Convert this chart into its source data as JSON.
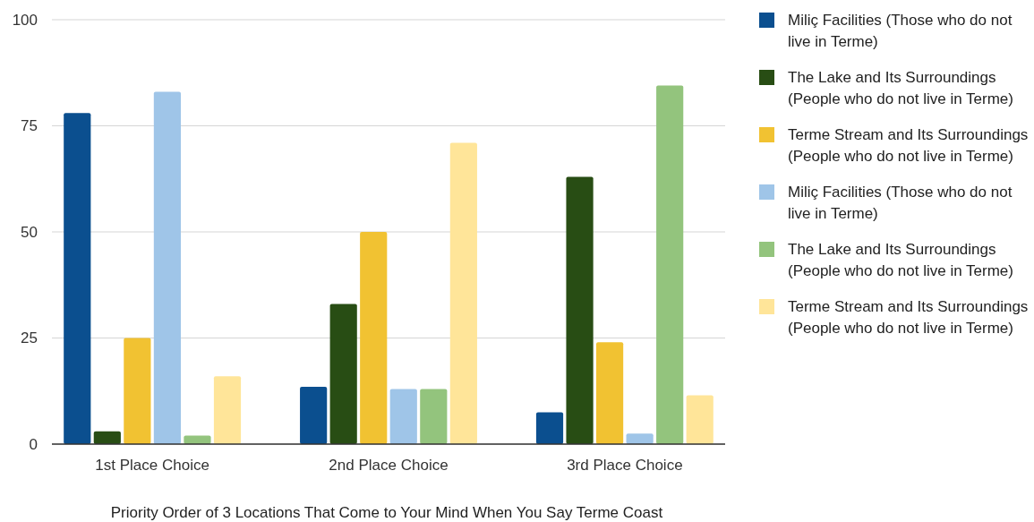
{
  "chart_data": {
    "type": "bar",
    "xlabel": "Priority Order of 3 Locations That Come to Your Mind When You Say Terme Coast",
    "categories": [
      "1st Place Choice",
      "2nd Place Choice",
      "3rd Place Choice"
    ],
    "series": [
      {
        "name": "Miliç Facilities (Those who do not live in Terme)",
        "color": "#0b4f8f",
        "values": [
          78,
          13.5,
          7.5
        ]
      },
      {
        "name": "The Lake and Its Surroundings (People who do not live in Terme)",
        "color": "#284d14",
        "values": [
          3,
          33,
          63
        ]
      },
      {
        "name": "Terme Stream and Its Surroundings (People who do not live in Terme)",
        "color": "#f1c232",
        "values": [
          25,
          50,
          24
        ]
      },
      {
        "name": "Miliç Facilities (Those who do not live in Terme)",
        "color": "#9fc5e8",
        "values": [
          83,
          13,
          2.5
        ]
      },
      {
        "name": "The Lake and Its Surroundings (People who do not live in Terme)",
        "color": "#93c47d",
        "values": [
          2,
          13,
          84.5
        ]
      },
      {
        "name": "Terme Stream and Its Surroundings (People who do not live in Terme)",
        "color": "#ffe599",
        "values": [
          16,
          71,
          11.5
        ]
      }
    ],
    "ylim": [
      0,
      100
    ],
    "yticks": [
      0,
      25,
      50,
      75,
      100
    ],
    "grid": "y",
    "legend": "right"
  }
}
